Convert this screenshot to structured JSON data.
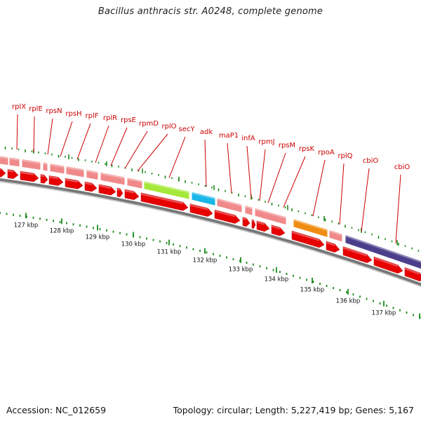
{
  "title": "Bacillus anthracis str. A0248, complete genome",
  "accession_text": "Accession: NC_012659",
  "summary_text": "Topology: circular; Length: 5,227,419 bp; Genes: 5,167",
  "colors": {
    "feature_pink": "#f08a8a",
    "feature_green": "#a6e83a",
    "feature_cyan": "#1ab6e8",
    "feature_orange": "#f08c12",
    "feature_purple": "#4b3f8c",
    "gene_arrow": "#e60000",
    "label_red": "#cc0000",
    "tick_green": "#1a8a1a",
    "backbone_gray": "#8a8a8a"
  },
  "gene_labels": [
    "rplX",
    "rplE",
    "rpsN",
    "rpsH",
    "rplF",
    "rplR",
    "rpsE",
    "rpmD",
    "rplO",
    "secY",
    "adk",
    "maP1",
    "infA",
    "rpmJ",
    "rpsM",
    "rpsK",
    "rpoA",
    "rplQ",
    "cbiO",
    "cbiO"
  ],
  "kbp_ticks": [
    "127 kbp",
    "128 kbp",
    "129 kbp",
    "130 kbp",
    "131 kbp",
    "132 kbp",
    "133 kbp",
    "134 kbp",
    "135 kbp",
    "136 kbp",
    "137 kbp"
  ],
  "feature_blocks": [
    {
      "color": "feature_pink"
    },
    {
      "color": "feature_pink"
    },
    {
      "color": "feature_pink"
    },
    {
      "color": "feature_pink"
    },
    {
      "color": "feature_pink"
    },
    {
      "color": "feature_pink"
    },
    {
      "color": "feature_pink"
    },
    {
      "color": "feature_green"
    },
    {
      "color": "feature_cyan"
    },
    {
      "color": "feature_pink"
    },
    {
      "color": "feature_pink"
    },
    {
      "color": "feature_pink"
    },
    {
      "color": "feature_pink"
    },
    {
      "color": "feature_orange"
    },
    {
      "color": "feature_pink"
    },
    {
      "color": "feature_purple"
    }
  ]
}
